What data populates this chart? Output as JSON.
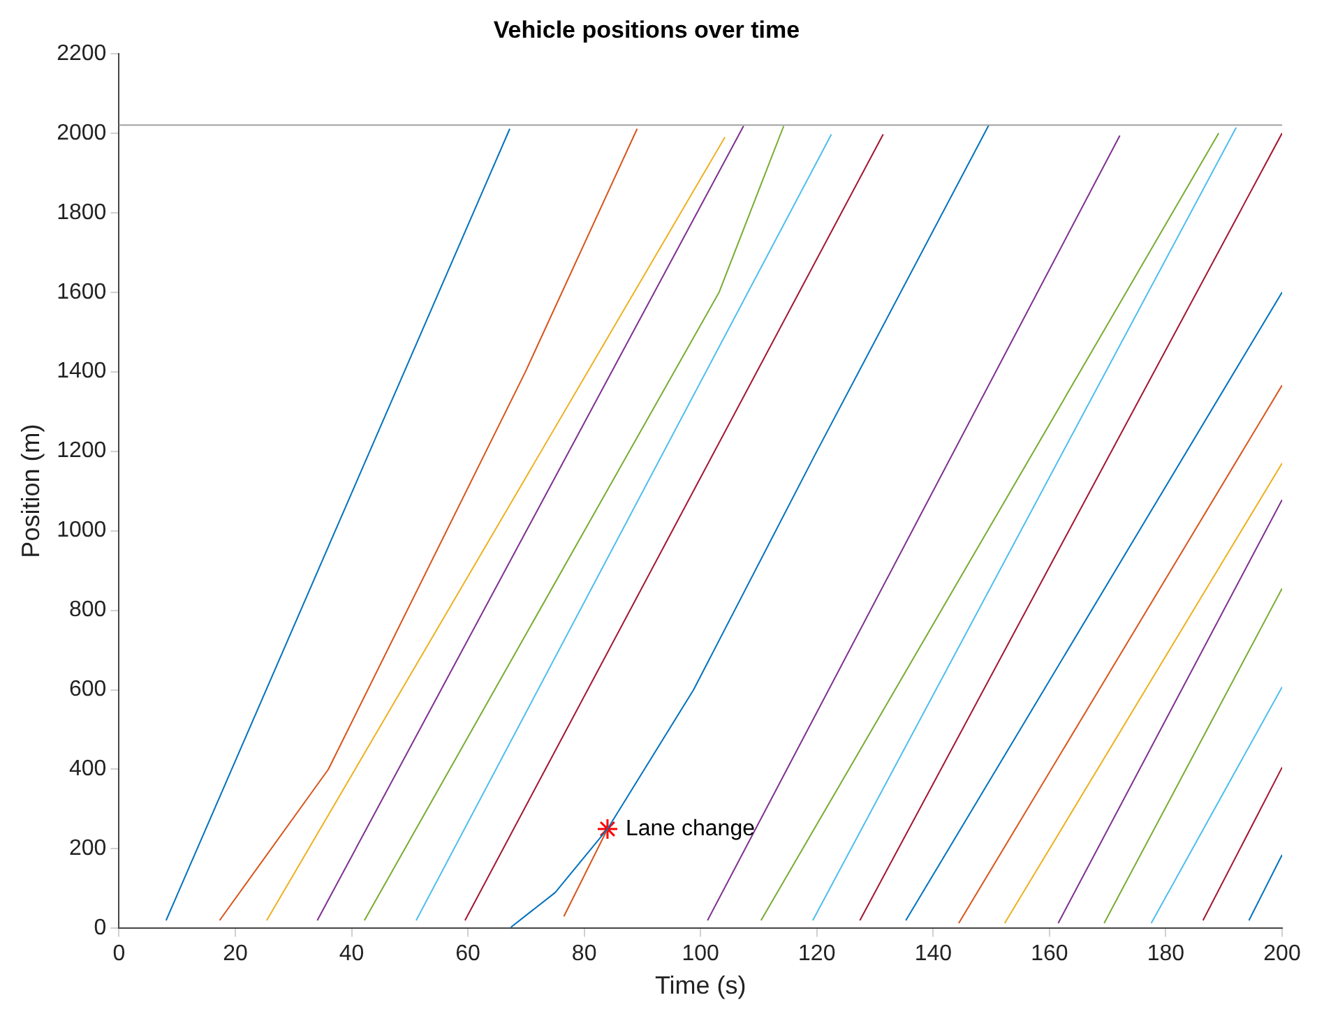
{
  "chart_data": {
    "type": "line",
    "title": "Vehicle positions over time",
    "xlabel": "Time (s)",
    "ylabel": "Position (m)",
    "xlim": [
      0,
      200
    ],
    "xticks": [
      0,
      20,
      40,
      60,
      80,
      100,
      120,
      140,
      160,
      180,
      200
    ],
    "ylim": [
      0,
      2200
    ],
    "yticks": [
      0,
      200,
      400,
      600,
      800,
      1000,
      1200,
      1400,
      1600,
      1800,
      2000,
      2200
    ],
    "grid": false,
    "legend": false,
    "marker": "none",
    "line_style": "solid",
    "ref_lines": [
      {
        "axis": "y",
        "value": 2020,
        "color": "#a0a0a0"
      }
    ],
    "annotations": [
      {
        "text": "Lane change",
        "x": 84,
        "y": 250
      }
    ],
    "series": [
      {
        "color": "#0072bd",
        "x": [
          8.1,
          67.2
        ],
        "values": [
          20,
          2011
        ]
      },
      {
        "color": "#d95319",
        "x": [
          17.3,
          36,
          69.9,
          89.1
        ],
        "values": [
          20,
          400,
          1400,
          2011
        ]
      },
      {
        "color": "#edb120",
        "x": [
          25.4,
          104.2
        ],
        "values": [
          20,
          1990
        ]
      },
      {
        "color": "#7e2f8e",
        "x": [
          34.1,
          107.4
        ],
        "values": [
          20,
          2018
        ]
      },
      {
        "color": "#77ac30",
        "x": [
          42.2,
          103.2,
          114.3
        ],
        "values": [
          20,
          1600,
          2018
        ]
      },
      {
        "color": "#4dbeee",
        "x": [
          51.1,
          122.5
        ],
        "values": [
          20,
          1997
        ]
      },
      {
        "color": "#a2142f",
        "x": [
          59.5,
          131.4
        ],
        "values": [
          20,
          1997
        ]
      },
      {
        "color": "#0072bd",
        "x": [
          67.4,
          75,
          84,
          98.8,
          120,
          149.6
        ],
        "values": [
          3,
          90,
          250,
          600,
          1200,
          2021
        ]
      },
      {
        "color": "#d95319",
        "x": [
          76.5,
          84
        ],
        "values": [
          30,
          250
        ]
      },
      {
        "color": "#7e2f8e",
        "x": [
          101.2,
          172.1
        ],
        "values": [
          20,
          1994
        ]
      },
      {
        "color": "#77ac30",
        "x": [
          110.4,
          189.1
        ],
        "values": [
          20,
          2000
        ]
      },
      {
        "color": "#4dbeee",
        "x": [
          119.3,
          192.1
        ],
        "values": [
          20,
          2014
        ]
      },
      {
        "color": "#a2142f",
        "x": [
          127.4,
          200
        ],
        "values": [
          20,
          2000
        ]
      },
      {
        "color": "#0072bd",
        "x": [
          135.3,
          200
        ],
        "values": [
          20,
          1600
        ]
      },
      {
        "color": "#d95319",
        "x": [
          144.4,
          200
        ],
        "values": [
          13,
          1366
        ]
      },
      {
        "color": "#edb120",
        "x": [
          152.3,
          200
        ],
        "values": [
          13,
          1170
        ]
      },
      {
        "color": "#7e2f8e",
        "x": [
          161.5,
          200
        ],
        "values": [
          13,
          1078
        ]
      },
      {
        "color": "#77ac30",
        "x": [
          169.4,
          200
        ],
        "values": [
          13,
          855
        ]
      },
      {
        "color": "#4dbeee",
        "x": [
          177.5,
          200
        ],
        "values": [
          13,
          607
        ]
      },
      {
        "color": "#a2142f",
        "x": [
          186.4,
          200
        ],
        "values": [
          20,
          405
        ]
      },
      {
        "color": "#0072bd",
        "x": [
          194.3,
          200
        ],
        "values": [
          20,
          185
        ]
      },
      {
        "type": "scatter",
        "marker": "cross",
        "color": "#ff0000",
        "x": [
          84
        ],
        "values": [
          250
        ]
      }
    ]
  }
}
